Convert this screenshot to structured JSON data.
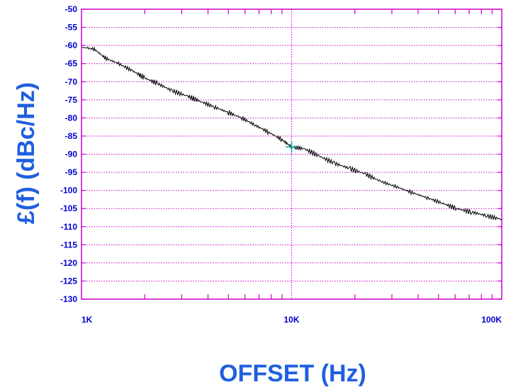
{
  "chart_data": {
    "type": "line",
    "xlabel": "OFFSET (Hz)",
    "ylabel": "£(f) (dBc/Hz)",
    "xscale": "log",
    "xlim": [
      1000,
      100000
    ],
    "ylim": [
      -130,
      -50
    ],
    "x_ticks": [
      1000,
      10000,
      100000
    ],
    "x_tick_labels": [
      "1K",
      "10K",
      "100K"
    ],
    "y_ticks": [
      -50,
      -55,
      -60,
      -65,
      -70,
      -75,
      -80,
      -85,
      -90,
      -95,
      -100,
      -105,
      -110,
      -115,
      -120,
      -125,
      -130
    ],
    "y_tick_labels": [
      "-50",
      "-55",
      "-60",
      "-65",
      "-70",
      "-75",
      "-80",
      "-85",
      "-90",
      "-95",
      "-100",
      "-105",
      "-110",
      "-115",
      "-120",
      "-125",
      "-130"
    ],
    "grid": true,
    "marker": {
      "x": 10000,
      "y": -88,
      "color": "#00aaaa"
    },
    "colors": {
      "frame": "#cc00cc",
      "grid": "#cc00cc",
      "line": "#000000",
      "tick_labels": "#0000cc",
      "titles": "#1f5fe0"
    },
    "series": [
      {
        "x": [
          1000,
          1150,
          1300,
          1500,
          1750,
          2000,
          2300,
          2700,
          3200,
          3700,
          4300,
          5000,
          5800,
          6700,
          7800,
          9000,
          10000,
          11500,
          13500,
          16000,
          19000,
          22500,
          26500,
          31500,
          37000,
          44000,
          52000,
          61000,
          72000,
          85000,
          100000
        ],
        "values": [
          -60.5,
          -61.0,
          -63.5,
          -65.0,
          -67.0,
          -69.0,
          -70.5,
          -72.5,
          -74.0,
          -75.5,
          -77.0,
          -78.5,
          -80.0,
          -82.0,
          -84.0,
          -86.0,
          -88.0,
          -88.5,
          -90.5,
          -92.5,
          -94.0,
          -95.5,
          -97.5,
          -99.0,
          -100.5,
          -102.0,
          -103.5,
          -105.0,
          -106.0,
          -107.0,
          -108.0
        ]
      }
    ]
  }
}
